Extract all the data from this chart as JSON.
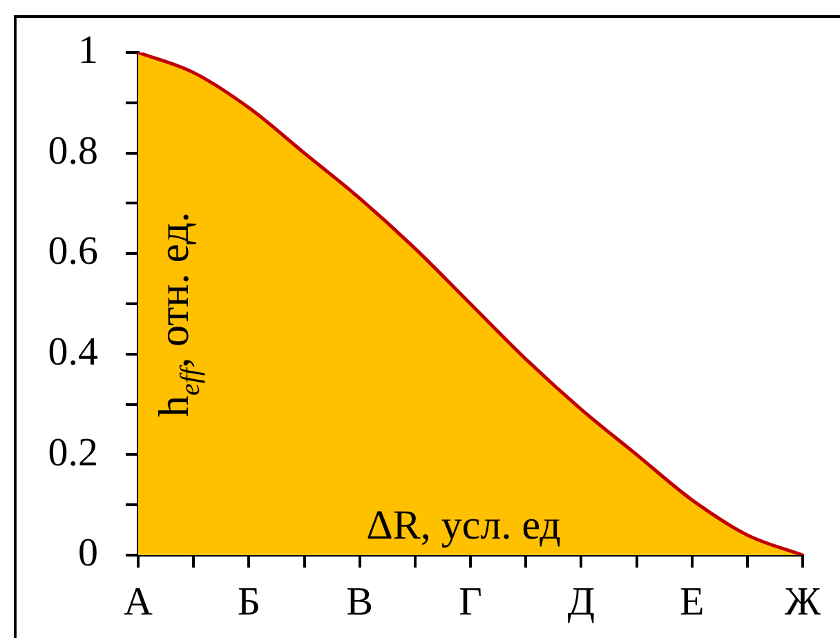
{
  "chart_data": {
    "type": "area",
    "xlabel": "ΔR, усл. ед",
    "ylabel": "h$_{eff}$, отн. ед.",
    "categories": [
      "А",
      null,
      "Б",
      null,
      "В",
      null,
      "Г",
      null,
      "Д",
      null,
      "Е",
      null,
      "Ж"
    ],
    "ylim": [
      0,
      1
    ],
    "yticks": [
      0,
      {
        "value": 0.1,
        "label": null
      },
      0.2,
      {
        "value": 0.3,
        "label": null
      },
      0.4,
      {
        "value": 0.5,
        "label": null
      },
      0.6,
      {
        "value": 0.7,
        "label": null
      },
      0.8,
      {
        "value": 0.9,
        "label": null
      },
      1
    ],
    "series": [
      {
        "color": "#ffc000",
        "values": [
          1,
          0.96,
          0.89,
          0.8,
          0.71,
          0.61,
          0.5,
          0.39,
          0.29,
          0.2,
          0.11,
          0.04,
          0
        ]
      }
    ]
  }
}
